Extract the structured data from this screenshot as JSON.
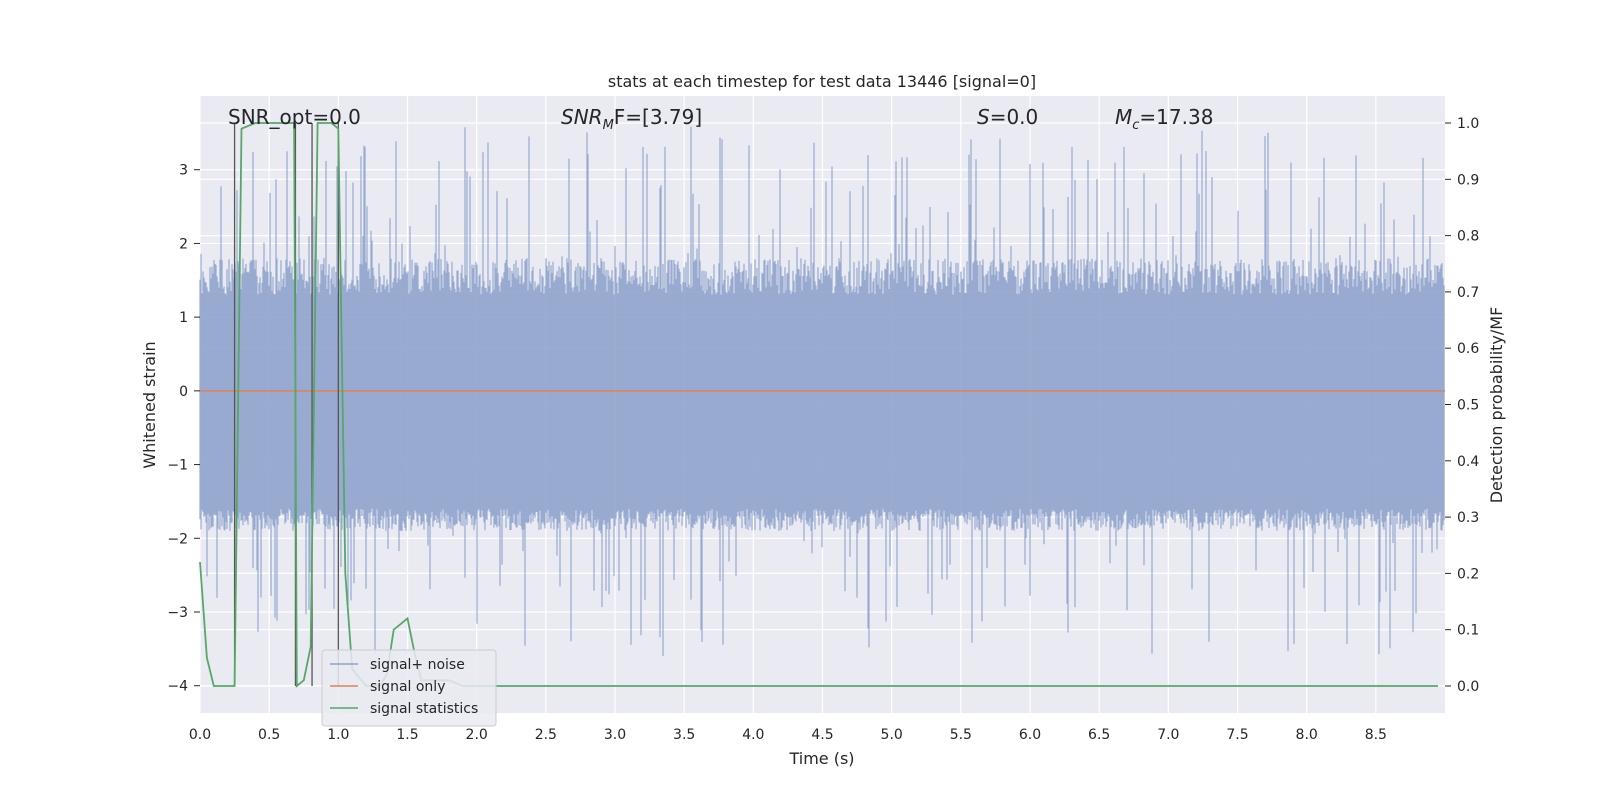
{
  "chart_data": {
    "type": "line",
    "title": "stats at each timestep for test data 13446 [signal=0]",
    "xlabel": "Time (s)",
    "ylabel": "Whitened strain",
    "y2label": "Detection probability/MF",
    "xlim": [
      0.0,
      9.0
    ],
    "ylim": [
      -4.37,
      4.0
    ],
    "y2lim": [
      -0.048,
      1.048
    ],
    "xticks": [
      "0.0",
      "0.5",
      "1.0",
      "1.5",
      "2.0",
      "2.5",
      "3.0",
      "3.5",
      "4.0",
      "4.5",
      "5.0",
      "5.5",
      "6.0",
      "6.5",
      "7.0",
      "7.5",
      "8.0",
      "8.5"
    ],
    "yticks": [
      "3",
      "2",
      "1",
      "0",
      "−1",
      "−2",
      "−3",
      "−4"
    ],
    "y2ticks": [
      "1.0",
      "0.9",
      "0.8",
      "0.7",
      "0.6",
      "0.5",
      "0.4",
      "0.3",
      "0.2",
      "0.1",
      "0.0"
    ],
    "grid": true,
    "legend_position": "lower-left",
    "annotations": {
      "snr_opt": "SNR_opt=0.0",
      "snr_mf_main": "SNR",
      "snr_mf_sub": "M",
      "snr_mf_rest": "F=[3.79]",
      "s_main": "S",
      "s_rest": "=0.0",
      "mc_main": "M",
      "mc_sub": "c",
      "mc_rest": "=17.38"
    },
    "series": [
      {
        "name": "signal+ noise",
        "axis": "left",
        "color": "#8fa3cc",
        "description_range": [
          -3.6,
          3.6
        ],
        "envelope": {
          "typical_max": 1.3,
          "typical_min": -1.6,
          "peak_max": 3.6,
          "peak_min": -3.6
        }
      },
      {
        "name": "signal only",
        "axis": "left",
        "color": "#dd8452",
        "x": [
          0.0,
          9.0
        ],
        "y": [
          0.0,
          0.0
        ]
      },
      {
        "name": "signal statistics",
        "axis": "right",
        "color": "#55a868",
        "x": [
          0.0,
          0.05,
          0.1,
          0.2,
          0.25,
          0.3,
          0.4,
          0.5,
          0.6,
          0.68,
          0.7,
          0.75,
          0.8,
          0.85,
          0.9,
          0.95,
          1.0,
          1.05,
          1.1,
          1.2,
          1.3,
          1.35,
          1.4,
          1.45,
          1.5,
          1.55,
          1.6,
          1.7,
          1.8,
          1.9,
          2.0,
          3.0,
          4.0,
          5.0,
          6.0,
          7.0,
          8.0,
          8.8,
          8.95
        ],
        "y": [
          0.22,
          0.05,
          0.0,
          0.0,
          0.0,
          0.99,
          1.0,
          1.0,
          1.0,
          1.0,
          0.0,
          0.01,
          0.07,
          1.0,
          1.0,
          1.0,
          0.99,
          0.2,
          0.03,
          0.0,
          0.0,
          0.02,
          0.1,
          0.11,
          0.12,
          0.06,
          0.01,
          0.01,
          0.01,
          0.0,
          0.0,
          0.0,
          0.0,
          0.0,
          0.0,
          0.0,
          0.0,
          0.0,
          0.0
        ]
      }
    ],
    "vlines": {
      "color": "#555555",
      "x": [
        0.25,
        0.69,
        0.81,
        1.0
      ]
    }
  }
}
